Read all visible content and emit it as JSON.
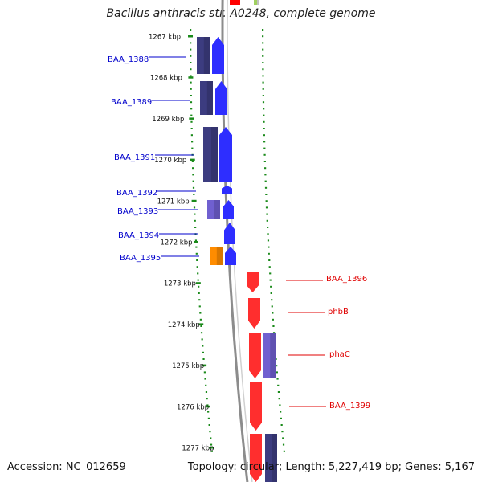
{
  "title": "Bacillus anthracis str. A0248, complete genome",
  "footer": {
    "accession": "Accession: NC_012659",
    "topology": "Topology: circular; Length: 5,227,419 bp; Genes: 5,167"
  },
  "colors": {
    "tick": "#1a8a1a",
    "backbone": "#8c8c8c",
    "gene_blue": "#0000ff",
    "gene_red": "#ff0000",
    "gene_navy": "#3c3c80",
    "gene_lavender": "#7060d0",
    "gene_orange": "#ff8c00",
    "label_blue": "#0000cc",
    "label_red": "#e00000"
  },
  "scale_labels": [
    "1267 kbp",
    "1268 kbp",
    "1269 kbp",
    "1270 kbp",
    "1271 kbp",
    "1272 kbp",
    "1273 kbp",
    "1274 kbp",
    "1275 kbp",
    "1276 kbp",
    "1277 kbp"
  ],
  "gene_labels": [
    {
      "text": "BAA_1388",
      "color": "blue"
    },
    {
      "text": "BAA_1389",
      "color": "blue"
    },
    {
      "text": "BAA_1391",
      "color": "blue"
    },
    {
      "text": "BAA_1392",
      "color": "blue"
    },
    {
      "text": "BAA_1393",
      "color": "blue"
    },
    {
      "text": "BAA_1394",
      "color": "blue"
    },
    {
      "text": "BAA_1395",
      "color": "blue"
    },
    {
      "text": "BAA_1396",
      "color": "red"
    },
    {
      "text": "phbB",
      "color": "red"
    },
    {
      "text": "phaC",
      "color": "red"
    },
    {
      "text": "BAA_1399",
      "color": "red"
    }
  ]
}
